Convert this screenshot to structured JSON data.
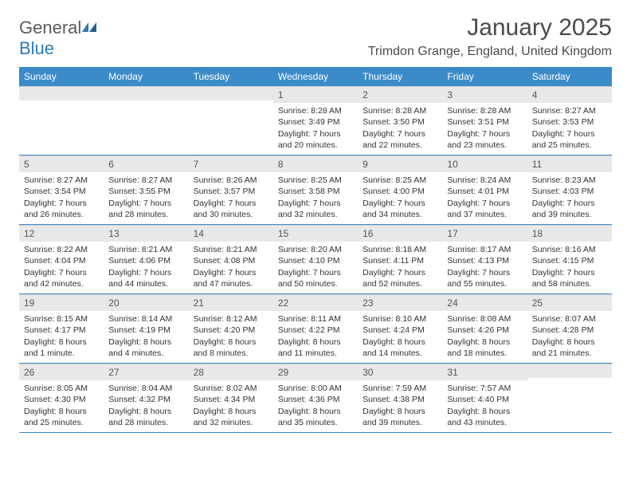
{
  "logo": {
    "text1": "General",
    "text2": "Blue"
  },
  "title": "January 2025",
  "location": "Trimdon Grange, England, United Kingdom",
  "colors": {
    "header_bg": "#3b8bc9",
    "header_fg": "#ffffff",
    "daynum_bg": "#e8e8e8",
    "row_border": "#3b8bc9",
    "text": "#333333",
    "logo_gray": "#5a5a5a",
    "logo_blue": "#2a7ab9"
  },
  "day_names": [
    "Sunday",
    "Monday",
    "Tuesday",
    "Wednesday",
    "Thursday",
    "Friday",
    "Saturday"
  ],
  "weeks": [
    [
      {
        "num": "",
        "lines": []
      },
      {
        "num": "",
        "lines": []
      },
      {
        "num": "",
        "lines": []
      },
      {
        "num": "1",
        "lines": [
          "Sunrise: 8:28 AM",
          "Sunset: 3:49 PM",
          "Daylight: 7 hours",
          "and 20 minutes."
        ]
      },
      {
        "num": "2",
        "lines": [
          "Sunrise: 8:28 AM",
          "Sunset: 3:50 PM",
          "Daylight: 7 hours",
          "and 22 minutes."
        ]
      },
      {
        "num": "3",
        "lines": [
          "Sunrise: 8:28 AM",
          "Sunset: 3:51 PM",
          "Daylight: 7 hours",
          "and 23 minutes."
        ]
      },
      {
        "num": "4",
        "lines": [
          "Sunrise: 8:27 AM",
          "Sunset: 3:53 PM",
          "Daylight: 7 hours",
          "and 25 minutes."
        ]
      }
    ],
    [
      {
        "num": "5",
        "lines": [
          "Sunrise: 8:27 AM",
          "Sunset: 3:54 PM",
          "Daylight: 7 hours",
          "and 26 minutes."
        ]
      },
      {
        "num": "6",
        "lines": [
          "Sunrise: 8:27 AM",
          "Sunset: 3:55 PM",
          "Daylight: 7 hours",
          "and 28 minutes."
        ]
      },
      {
        "num": "7",
        "lines": [
          "Sunrise: 8:26 AM",
          "Sunset: 3:57 PM",
          "Daylight: 7 hours",
          "and 30 minutes."
        ]
      },
      {
        "num": "8",
        "lines": [
          "Sunrise: 8:25 AM",
          "Sunset: 3:58 PM",
          "Daylight: 7 hours",
          "and 32 minutes."
        ]
      },
      {
        "num": "9",
        "lines": [
          "Sunrise: 8:25 AM",
          "Sunset: 4:00 PM",
          "Daylight: 7 hours",
          "and 34 minutes."
        ]
      },
      {
        "num": "10",
        "lines": [
          "Sunrise: 8:24 AM",
          "Sunset: 4:01 PM",
          "Daylight: 7 hours",
          "and 37 minutes."
        ]
      },
      {
        "num": "11",
        "lines": [
          "Sunrise: 8:23 AM",
          "Sunset: 4:03 PM",
          "Daylight: 7 hours",
          "and 39 minutes."
        ]
      }
    ],
    [
      {
        "num": "12",
        "lines": [
          "Sunrise: 8:22 AM",
          "Sunset: 4:04 PM",
          "Daylight: 7 hours",
          "and 42 minutes."
        ]
      },
      {
        "num": "13",
        "lines": [
          "Sunrise: 8:21 AM",
          "Sunset: 4:06 PM",
          "Daylight: 7 hours",
          "and 44 minutes."
        ]
      },
      {
        "num": "14",
        "lines": [
          "Sunrise: 8:21 AM",
          "Sunset: 4:08 PM",
          "Daylight: 7 hours",
          "and 47 minutes."
        ]
      },
      {
        "num": "15",
        "lines": [
          "Sunrise: 8:20 AM",
          "Sunset: 4:10 PM",
          "Daylight: 7 hours",
          "and 50 minutes."
        ]
      },
      {
        "num": "16",
        "lines": [
          "Sunrise: 8:18 AM",
          "Sunset: 4:11 PM",
          "Daylight: 7 hours",
          "and 52 minutes."
        ]
      },
      {
        "num": "17",
        "lines": [
          "Sunrise: 8:17 AM",
          "Sunset: 4:13 PM",
          "Daylight: 7 hours",
          "and 55 minutes."
        ]
      },
      {
        "num": "18",
        "lines": [
          "Sunrise: 8:16 AM",
          "Sunset: 4:15 PM",
          "Daylight: 7 hours",
          "and 58 minutes."
        ]
      }
    ],
    [
      {
        "num": "19",
        "lines": [
          "Sunrise: 8:15 AM",
          "Sunset: 4:17 PM",
          "Daylight: 8 hours",
          "and 1 minute."
        ]
      },
      {
        "num": "20",
        "lines": [
          "Sunrise: 8:14 AM",
          "Sunset: 4:19 PM",
          "Daylight: 8 hours",
          "and 4 minutes."
        ]
      },
      {
        "num": "21",
        "lines": [
          "Sunrise: 8:12 AM",
          "Sunset: 4:20 PM",
          "Daylight: 8 hours",
          "and 8 minutes."
        ]
      },
      {
        "num": "22",
        "lines": [
          "Sunrise: 8:11 AM",
          "Sunset: 4:22 PM",
          "Daylight: 8 hours",
          "and 11 minutes."
        ]
      },
      {
        "num": "23",
        "lines": [
          "Sunrise: 8:10 AM",
          "Sunset: 4:24 PM",
          "Daylight: 8 hours",
          "and 14 minutes."
        ]
      },
      {
        "num": "24",
        "lines": [
          "Sunrise: 8:08 AM",
          "Sunset: 4:26 PM",
          "Daylight: 8 hours",
          "and 18 minutes."
        ]
      },
      {
        "num": "25",
        "lines": [
          "Sunrise: 8:07 AM",
          "Sunset: 4:28 PM",
          "Daylight: 8 hours",
          "and 21 minutes."
        ]
      }
    ],
    [
      {
        "num": "26",
        "lines": [
          "Sunrise: 8:05 AM",
          "Sunset: 4:30 PM",
          "Daylight: 8 hours",
          "and 25 minutes."
        ]
      },
      {
        "num": "27",
        "lines": [
          "Sunrise: 8:04 AM",
          "Sunset: 4:32 PM",
          "Daylight: 8 hours",
          "and 28 minutes."
        ]
      },
      {
        "num": "28",
        "lines": [
          "Sunrise: 8:02 AM",
          "Sunset: 4:34 PM",
          "Daylight: 8 hours",
          "and 32 minutes."
        ]
      },
      {
        "num": "29",
        "lines": [
          "Sunrise: 8:00 AM",
          "Sunset: 4:36 PM",
          "Daylight: 8 hours",
          "and 35 minutes."
        ]
      },
      {
        "num": "30",
        "lines": [
          "Sunrise: 7:59 AM",
          "Sunset: 4:38 PM",
          "Daylight: 8 hours",
          "and 39 minutes."
        ]
      },
      {
        "num": "31",
        "lines": [
          "Sunrise: 7:57 AM",
          "Sunset: 4:40 PM",
          "Daylight: 8 hours",
          "and 43 minutes."
        ]
      },
      {
        "num": "",
        "lines": []
      }
    ]
  ]
}
